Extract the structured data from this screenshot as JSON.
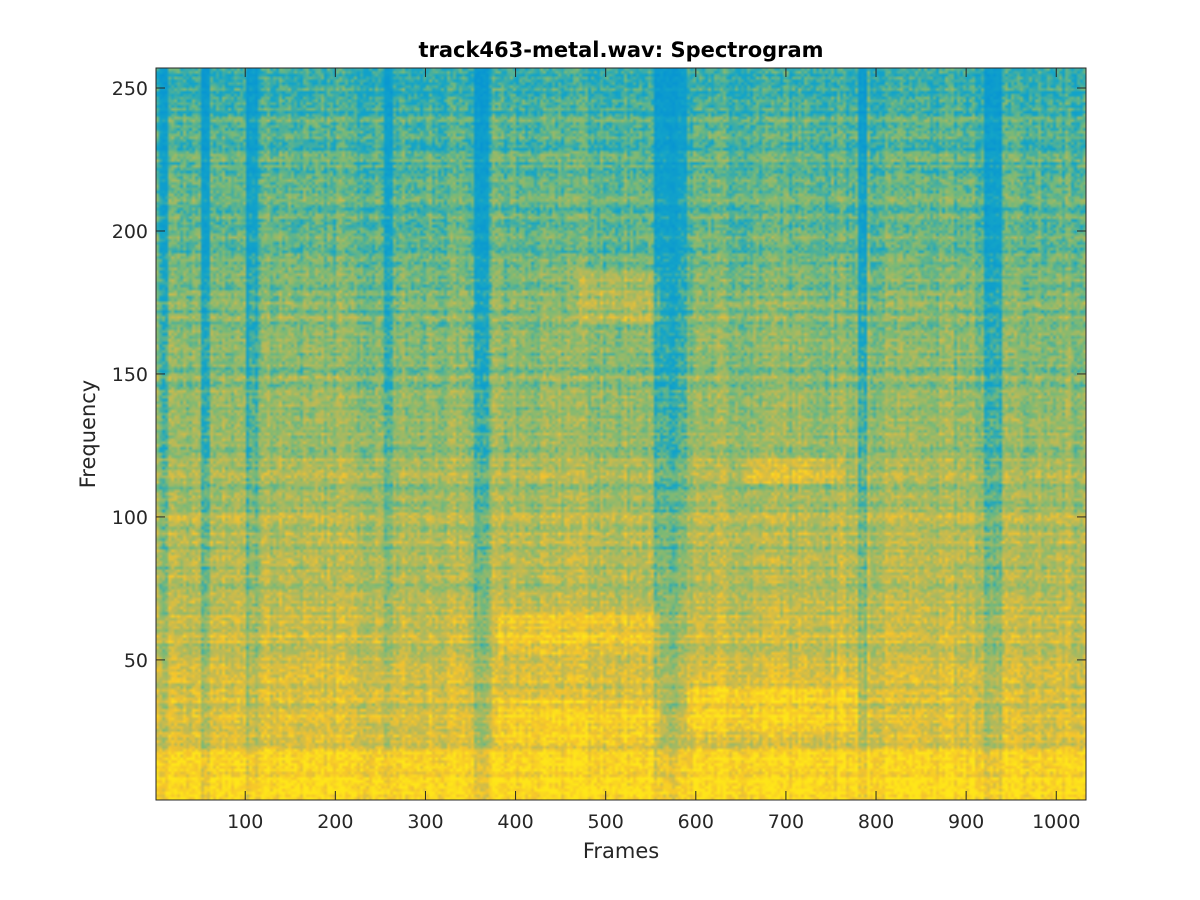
{
  "chart_data": {
    "type": "heatmap",
    "title": "track463-metal.wav: Spectrogram",
    "xlabel": "Frames",
    "ylabel": "Frequency",
    "xlim": [
      1,
      1033
    ],
    "ylim": [
      1,
      257
    ],
    "x_ticks": [
      100,
      200,
      300,
      400,
      500,
      600,
      700,
      800,
      900,
      1000
    ],
    "y_ticks": [
      50,
      100,
      150,
      200,
      250
    ],
    "colormap": "parula",
    "colors": {
      "low": "#0f9fcf",
      "mid": "#8fb86b",
      "high": "#f5c428",
      "peak": "#ffe01a"
    },
    "grid": false,
    "legend": "none",
    "quiet_frame_ranges": [
      [
        5,
        15
      ],
      [
        50,
        60
      ],
      [
        100,
        115
      ],
      [
        255,
        265
      ],
      [
        355,
        370
      ],
      [
        555,
        590
      ],
      [
        780,
        790
      ],
      [
        920,
        940
      ]
    ],
    "bright_bands": [
      {
        "frames": [
          380,
          560
        ],
        "frequency": [
          20,
          35
        ]
      },
      {
        "frames": [
          380,
          560
        ],
        "frequency": [
          52,
          66
        ]
      },
      {
        "frames": [
          590,
          780
        ],
        "frequency": [
          25,
          40
        ]
      },
      {
        "frames": [
          650,
          760
        ],
        "frequency": [
          112,
          120
        ]
      },
      {
        "frames": [
          470,
          560
        ],
        "frequency": [
          168,
          186
        ]
      },
      {
        "frames": [
          1,
          1033
        ],
        "frequency": [
          1,
          18
        ]
      }
    ]
  }
}
